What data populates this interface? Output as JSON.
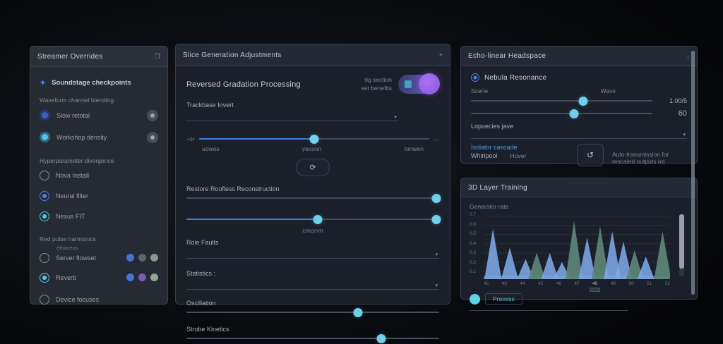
{
  "icons": {
    "collapse": "❐",
    "add": "+",
    "arrow_down": "↓",
    "refresh": "⟳",
    "restore": "↺",
    "caret": "▾",
    "sparkle": "✦"
  },
  "left_panel": {
    "title": "Streamer Overrides",
    "intro_label": "Soundstage checkpoints",
    "audio_section": {
      "heading": "Waveform channel blending",
      "items": [
        {
          "label": "Slow retotal"
        },
        {
          "label": "Workshop density"
        }
      ]
    },
    "divergence_section": {
      "heading": "Hyperparameter divergence",
      "options": [
        {
          "label": "Nova Install"
        },
        {
          "label": "Neural filter"
        },
        {
          "label": "Nexus FIT"
        }
      ]
    },
    "harmonics_section": {
      "heading": "Red pulse harmonics",
      "sublabel": "ethaceus",
      "rows": [
        {
          "label": "Server flowset",
          "dots": [
            "#4a72cf",
            "#5c6573",
            "#8d978f"
          ]
        },
        {
          "label": "Reverb",
          "dots": [
            "#4a72cf",
            "#7a5bbd",
            "#97a29b"
          ]
        },
        {
          "label": "Device focuses",
          "dots": []
        }
      ]
    }
  },
  "middle_panel": {
    "title": "Slice Generation Adjustments",
    "heading": "Reversed Gradation Processing",
    "toggle": {
      "line1": "rig section",
      "line2": "set benefits",
      "state": "on"
    },
    "dropdown_invert": {
      "label": "Trackbase Invert",
      "value": ""
    },
    "slider_main": {
      "left": "+0r",
      "right": "—",
      "labels": [
        "uowos",
        "yecoon",
        "Ionwen"
      ],
      "fill": 50,
      "handles": [
        50
      ]
    },
    "slider_restore": {
      "label": "Restore Roofless Reconstruction",
      "fill": 0,
      "handles": [
        99
      ]
    },
    "slider_range": {
      "center_label": "cmcnvn",
      "fill": 52,
      "handles": [
        52,
        99
      ]
    },
    "dropdown_faults": {
      "label": "Role Faults",
      "value": ""
    },
    "dropdown_stats": {
      "label": "Statistics :",
      "value": ""
    },
    "slider_oscillation": {
      "label": "Oscillation",
      "fill": 0,
      "handles": [
        68
      ]
    },
    "slider_strobe": {
      "label": "Strobe Kinetics",
      "fill": 0,
      "handles": [
        77
      ]
    }
  },
  "right_top_panel": {
    "title": "Echo-linear Headspace",
    "heading": "Nebula Resonance",
    "scene_label": "Scene",
    "wave_label": "Wave",
    "slider_scene": {
      "fill": 0,
      "handles": [
        62
      ],
      "value": "1.00/5"
    },
    "slider_wave": {
      "fill": 0,
      "handles": [
        57
      ],
      "value": "60"
    },
    "species_label": "Lopoecies jave",
    "link_label": "Isolator cascade",
    "sub_left": "Whirlpool",
    "sub_right": "Hover",
    "note": "Auto-transmission for rescaled outputs od"
  },
  "right_bottom_panel": {
    "title": "3D Layer Training"
  },
  "chart_data": {
    "type": "area",
    "title": "Generator rate",
    "legend": [
      {
        "label": "Process",
        "color": "#5ed2e8"
      }
    ],
    "y_ticks": [
      "0.7",
      "0.6",
      "0.5",
      "0.4",
      "0.3",
      "0.2",
      "0.1"
    ],
    "x_ticks": [
      "42",
      "43",
      "44",
      "45",
      "46",
      "47",
      "48",
      "49",
      "50",
      "51",
      "52"
    ],
    "selected_x_tick": "48",
    "ylim": [
      0,
      0.8
    ],
    "grid": true,
    "legend_position": "bottom-left",
    "series_colors": {
      "blue": "#7da8e8",
      "teal": "#5d8579"
    },
    "peaks": [
      {
        "x": 5,
        "h": 0.8,
        "c": "blue"
      },
      {
        "x": 14,
        "h": 0.5,
        "c": "blue"
      },
      {
        "x": 22.5,
        "h": 0.32,
        "c": "blue"
      },
      {
        "x": 28.5,
        "h": 0.42,
        "c": "teal"
      },
      {
        "x": 35.5,
        "h": 0.42,
        "c": "blue"
      },
      {
        "x": 42,
        "h": 0.27,
        "c": "blue"
      },
      {
        "x": 48.5,
        "h": 0.93,
        "c": "teal"
      },
      {
        "x": 55.5,
        "h": 0.66,
        "c": "blue"
      },
      {
        "x": 62.5,
        "h": 0.84,
        "c": "teal"
      },
      {
        "x": 69,
        "h": 0.76,
        "c": "blue"
      },
      {
        "x": 75,
        "h": 0.6,
        "c": "blue"
      },
      {
        "x": 81,
        "h": 0.46,
        "c": "teal"
      },
      {
        "x": 87,
        "h": 0.36,
        "c": "blue"
      },
      {
        "x": 96,
        "h": 0.76,
        "c": "teal"
      }
    ]
  }
}
